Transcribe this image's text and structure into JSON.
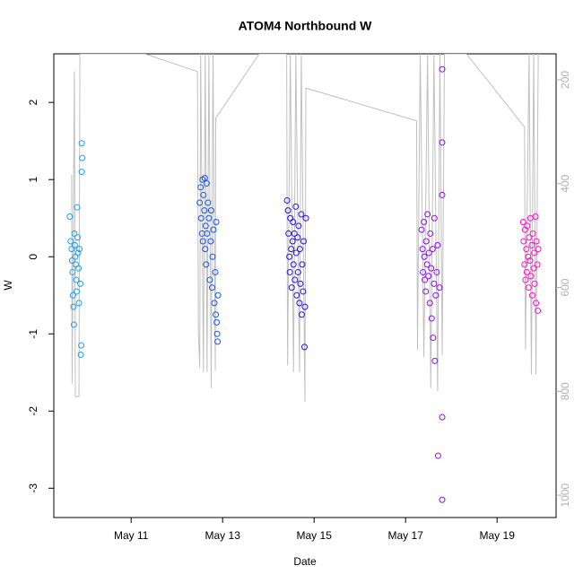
{
  "chart_data": {
    "type": "scatter",
    "title": "ATOM4 Northbound W",
    "x_label": "Date",
    "y_label": "W",
    "xlim": [
      9.31,
      20.29
    ],
    "xticks": [
      {
        "value": 11,
        "label": "May 11"
      },
      {
        "value": 13,
        "label": "May 13"
      },
      {
        "value": 15,
        "label": "May 15"
      },
      {
        "value": 17,
        "label": "May 17"
      },
      {
        "value": 19,
        "label": "May 19"
      }
    ],
    "ylim": [
      -3.38,
      2.63
    ],
    "yticks": [
      -3,
      -2,
      -1,
      0,
      1,
      2
    ],
    "y2lim": [
      1043,
      150
    ],
    "y2ticks": [
      200,
      400,
      600,
      800,
      1000
    ],
    "series": [
      {
        "type": "line",
        "axis": "y2",
        "color": "#c0c0c0",
        "x": [
          9.7,
          9.71,
          9.76,
          9.78,
          9.86,
          9.88,
          9.93,
          11.3,
          12.45,
          12.47,
          12.5,
          12.52,
          12.58,
          12.62,
          12.66,
          12.7,
          12.75,
          12.79,
          12.84,
          12.85,
          13.8,
          14.4,
          14.42,
          14.48,
          14.55,
          14.6,
          14.68,
          14.72,
          14.8,
          14.82,
          17.24,
          17.26,
          17.32,
          17.4,
          17.48,
          17.55,
          17.62,
          17.7,
          17.75,
          17.8,
          17.85,
          18.33,
          19.6,
          19.62,
          19.7,
          19.75,
          19.8,
          19.85,
          19.9
        ],
        "values": [
          383,
          785,
          184,
          810,
          810,
          150,
          150,
          150,
          184,
          685,
          754,
          150,
          763,
          150,
          763,
          150,
          794,
          150,
          760,
          274,
          150,
          150,
          750,
          150,
          763,
          150,
          763,
          150,
          820,
          216,
          279,
          720,
          150,
          734,
          150,
          794,
          150,
          800,
          150,
          730,
          150,
          150,
          291,
          720,
          150,
          768,
          150,
          768,
          150
        ]
      },
      {
        "color": "#1ea0f0",
        "x": [
          9.66,
          9.68,
          9.7,
          9.71,
          9.72,
          9.73,
          9.74,
          9.75,
          9.76,
          9.77,
          9.78,
          9.79,
          9.8,
          9.81,
          9.82,
          9.83,
          9.84,
          9.85,
          9.86,
          9.87,
          9.92,
          9.93,
          9.92,
          9.91,
          9.9,
          9.89
        ],
        "values": [
          0.52,
          0.2,
          0.1,
          -0.05,
          -0.2,
          -0.5,
          -0.65,
          -0.88,
          0.3,
          0.15,
          0.0,
          -0.1,
          -0.3,
          -0.45,
          0.64,
          0.25,
          0.05,
          -0.15,
          -0.6,
          0.1,
          1.47,
          1.28,
          1.1,
          -1.15,
          -1.27,
          -0.35
        ]
      },
      {
        "color": "#1556f0",
        "x": [
          12.5,
          12.52,
          12.53,
          12.55,
          12.56,
          12.57,
          12.58,
          12.6,
          12.61,
          12.62,
          12.63,
          12.64,
          12.65,
          12.66,
          12.68,
          12.7,
          12.72,
          12.74,
          12.75,
          12.77,
          12.78,
          12.8,
          12.82,
          12.84,
          12.85,
          12.86,
          12.87,
          12.88,
          12.89,
          12.9
        ],
        "values": [
          0.7,
          0.9,
          0.5,
          0.3,
          1.0,
          0.2,
          0.8,
          0.6,
          1.02,
          0.1,
          0.4,
          -0.1,
          0.95,
          0.3,
          0.7,
          0.5,
          -0.3,
          0.2,
          0.6,
          -0.4,
          0.0,
          0.35,
          -0.6,
          -0.2,
          -0.75,
          0.45,
          -0.85,
          -1.0,
          -1.1,
          -0.5
        ]
      },
      {
        "color": "#2a0fe6",
        "x": [
          14.41,
          14.43,
          14.44,
          14.46,
          14.47,
          14.48,
          14.5,
          14.51,
          14.53,
          14.54,
          14.55,
          14.57,
          14.58,
          14.6,
          14.61,
          14.62,
          14.64,
          14.65,
          14.66,
          14.68,
          14.69,
          14.7,
          14.72,
          14.73,
          14.74,
          14.76,
          14.77,
          14.79,
          14.8,
          14.82
        ],
        "values": [
          0.73,
          0.6,
          0.3,
          0.0,
          -0.2,
          0.5,
          0.1,
          -0.4,
          0.2,
          0.45,
          -0.1,
          0.3,
          -0.3,
          0.65,
          0.05,
          -0.5,
          0.25,
          -0.2,
          0.4,
          -0.6,
          0.1,
          -0.35,
          0.55,
          -0.75,
          -0.1,
          -0.45,
          0.2,
          -1.17,
          -0.65,
          0.5
        ]
      },
      {
        "color": "#8a0ff0",
        "x": [
          17.35,
          17.37,
          17.38,
          17.4,
          17.41,
          17.42,
          17.44,
          17.45,
          17.47,
          17.48,
          17.5,
          17.51,
          17.53,
          17.54,
          17.56,
          17.57,
          17.59,
          17.6,
          17.62,
          17.63,
          17.64,
          17.66,
          17.68,
          17.7,
          17.71,
          17.74,
          17.8,
          17.8,
          17.8,
          17.8,
          17.8
        ],
        "values": [
          0.35,
          0.1,
          -0.2,
          0.45,
          0.0,
          -0.3,
          -0.45,
          0.2,
          -0.1,
          0.55,
          -0.25,
          0.05,
          -0.6,
          0.3,
          -0.15,
          -0.8,
          0.1,
          -1.05,
          -0.35,
          0.5,
          -1.35,
          -0.5,
          -0.2,
          0.15,
          -2.58,
          -0.4,
          2.43,
          1.48,
          0.8,
          -2.08,
          -3.15
        ]
      },
      {
        "color": "#ff10c8",
        "x": [
          19.57,
          19.58,
          19.6,
          19.61,
          19.62,
          19.64,
          19.65,
          19.66,
          19.68,
          19.69,
          19.7,
          19.72,
          19.73,
          19.74,
          19.76,
          19.77,
          19.78,
          19.8,
          19.81,
          19.82,
          19.84,
          19.85,
          19.86,
          19.88,
          19.89,
          19.9
        ],
        "values": [
          0.45,
          0.2,
          -0.1,
          0.35,
          -0.3,
          0.1,
          -0.2,
          0.4,
          0.0,
          -0.4,
          0.25,
          -0.05,
          0.5,
          -0.25,
          0.15,
          -0.5,
          0.3,
          -0.15,
          0.05,
          -0.35,
          0.52,
          -0.6,
          0.2,
          -0.1,
          -0.7,
          0.1
        ]
      }
    ]
  }
}
